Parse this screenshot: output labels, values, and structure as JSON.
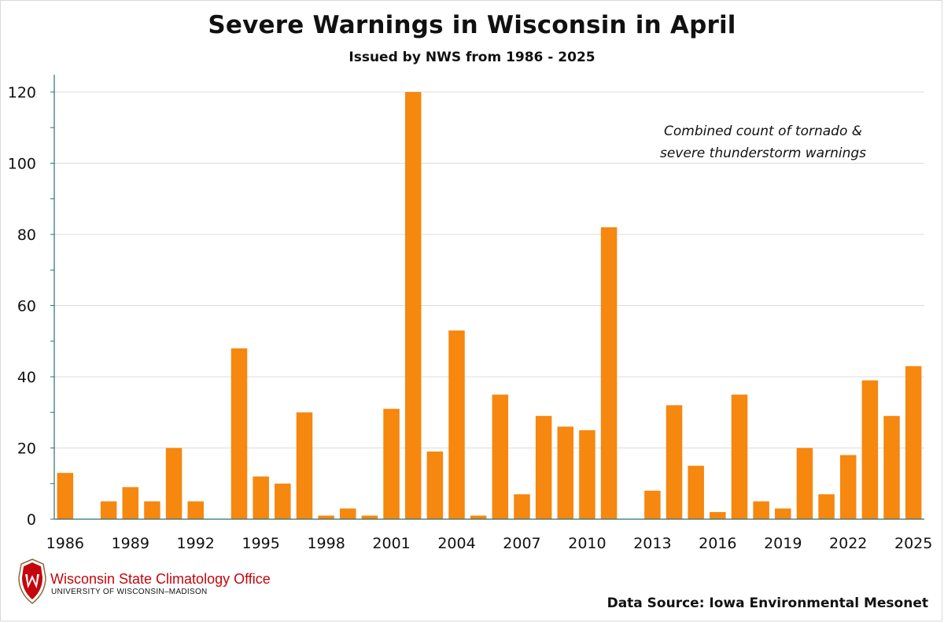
{
  "header": {
    "title": "Severe Warnings in Wisconsin in April",
    "subtitle": "Issued by NWS from 1986 - 2025"
  },
  "annotation": {
    "line1": "Combined count of tornado &",
    "line2": "severe thunderstorm warnings"
  },
  "footer": {
    "org_name": "Wisconsin State Climatology Office",
    "org_sub": "UNIVERSITY OF WISCONSIN–MADISON",
    "source": "Data Source: Iowa Environmental Mesonet"
  },
  "colors": {
    "bar": "#f6870f",
    "grid": "#dcdcdc",
    "axis": "#2f6f73",
    "logo_red": "#c5050c"
  },
  "chart_data": {
    "type": "bar",
    "title": "Severe Warnings in Wisconsin in April",
    "subtitle": "Issued by NWS from 1986 - 2025",
    "xlabel": "",
    "ylabel": "",
    "ylim": [
      0,
      120
    ],
    "yticks": [
      0,
      20,
      40,
      60,
      80,
      100,
      120
    ],
    "grid": true,
    "legend": "none",
    "x_tick_labels": [
      "1986",
      "1989",
      "1992",
      "1995",
      "1998",
      "2001",
      "2004",
      "2007",
      "2010",
      "2013",
      "2016",
      "2019",
      "2022",
      "2025"
    ],
    "categories": [
      "1986",
      "1987",
      "1988",
      "1989",
      "1990",
      "1991",
      "1992",
      "1993",
      "1994",
      "1995",
      "1996",
      "1997",
      "1998",
      "1999",
      "2000",
      "2001",
      "2002",
      "2003",
      "2004",
      "2005",
      "2006",
      "2007",
      "2008",
      "2009",
      "2010",
      "2011",
      "2012",
      "2013",
      "2014",
      "2015",
      "2016",
      "2017",
      "2018",
      "2019",
      "2020",
      "2021",
      "2022",
      "2023",
      "2024",
      "2025"
    ],
    "values": [
      13,
      0,
      5,
      9,
      5,
      20,
      5,
      0,
      48,
      12,
      10,
      30,
      1,
      3,
      1,
      31,
      120,
      19,
      53,
      1,
      35,
      7,
      29,
      26,
      25,
      82,
      0,
      8,
      32,
      15,
      2,
      35,
      5,
      3,
      20,
      7,
      18,
      39,
      29,
      43
    ]
  }
}
